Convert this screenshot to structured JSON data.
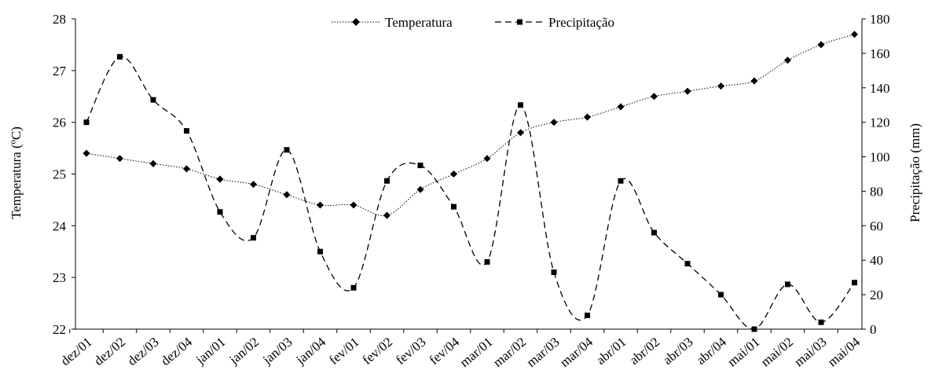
{
  "chart_data": {
    "type": "line",
    "categories": [
      "dez/01",
      "dez/02",
      "dez/03",
      "dez/04",
      "jan/01",
      "jan/02",
      "jan/03",
      "jan/04",
      "fev/01",
      "fev/02",
      "fev/03",
      "fev/04",
      "mar/01",
      "mar/02",
      "mar/03",
      "mar/04",
      "abr/01",
      "abr/02",
      "abr/03",
      "abr/04",
      "mai/01",
      "mai/02",
      "mai/03",
      "mai/04"
    ],
    "series": [
      {
        "name": "Temperatura",
        "axis": "left",
        "line_style": "dotted",
        "marker": "diamond",
        "color": "#000000",
        "values": [
          25.4,
          25.3,
          25.2,
          25.1,
          24.9,
          24.8,
          24.6,
          24.4,
          24.4,
          24.2,
          24.7,
          25.0,
          25.3,
          25.8,
          26.0,
          26.1,
          26.3,
          26.5,
          26.6,
          26.7,
          26.8,
          27.2,
          27.5,
          27.7
        ]
      },
      {
        "name": "Precipitação",
        "axis": "right",
        "line_style": "dashed",
        "marker": "square",
        "color": "#000000",
        "values": [
          120,
          158,
          133,
          115,
          68,
          53,
          104,
          45,
          24,
          86,
          95,
          71,
          39,
          130,
          33,
          8,
          86,
          56,
          38,
          20,
          0,
          26,
          4,
          27
        ]
      }
    ],
    "ylabel": "Temperatura (ºC)",
    "ylabel_right": "Precipitação (mm)",
    "ylim": [
      22,
      28
    ],
    "yticks": [
      "22",
      "23",
      "24",
      "25",
      "26",
      "27",
      "28"
    ],
    "ylim_right": [
      0,
      180
    ],
    "yticks_right": [
      "0",
      "20",
      "40",
      "60",
      "80",
      "100",
      "120",
      "140",
      "160",
      "180"
    ],
    "grid": false,
    "legend_position": "top-center"
  }
}
